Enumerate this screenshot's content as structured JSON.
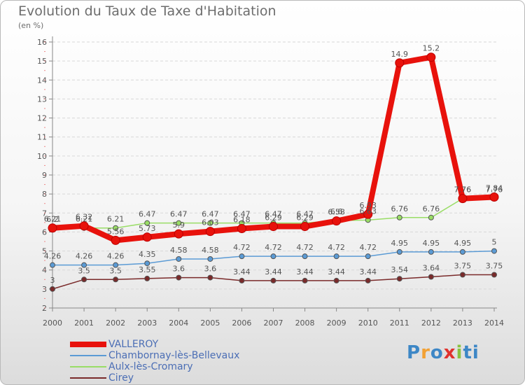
{
  "title": "Evolution du Taux de Taxe d'Habitation",
  "subtitle": "(en %)",
  "logo": {
    "text": "Proxiti",
    "colors": [
      "#3d87c6",
      "#f2a134",
      "#3d87c6",
      "#e0322d",
      "#88c23f",
      "#3d87c6",
      "#3d87c6"
    ]
  },
  "chart_data": {
    "type": "line",
    "x": [
      "2000",
      "2001",
      "2002",
      "2003",
      "2004",
      "2005",
      "2006",
      "2007",
      "2008",
      "2009",
      "2010",
      "2011",
      "2012",
      "2013",
      "2014"
    ],
    "ylim": [
      2,
      16
    ],
    "yticks": [
      "2",
      "3",
      "4",
      "5",
      "6",
      "7",
      "8",
      "9",
      "10",
      "11",
      "12",
      "13",
      "14",
      "15",
      "16"
    ],
    "grid": "horizontal dashed",
    "legend_position": "bottom-left",
    "series": [
      {
        "name": "VALLEROY",
        "color": "#e8120c",
        "values": [
          6.21,
          6.32,
          5.56,
          5.73,
          5.9,
          6.03,
          6.18,
          6.29,
          6.29,
          6.58,
          6.93,
          14.9,
          15.2,
          7.76,
          7.84
        ],
        "labels": [
          "6.21",
          "6.32",
          "5.56",
          "5.73",
          "5.9",
          "6.03",
          "6.18",
          "6.29",
          "6.29",
          "6.58",
          "6.93",
          "14.9",
          "15.2",
          "7.76",
          "7.84"
        ]
      },
      {
        "name": "Chambornay-lès-Bellevaux",
        "color": "#5b9bd5",
        "values": [
          4.26,
          4.26,
          4.26,
          4.35,
          4.58,
          4.58,
          4.72,
          4.72,
          4.72,
          4.72,
          4.72,
          4.95,
          4.95,
          4.95,
          5
        ],
        "labels": [
          "4.26",
          "4.26",
          "4.26",
          "4.35",
          "4.58",
          "4.58",
          "4.72",
          "4.72",
          "4.72",
          "4.72",
          "4.72",
          "4.95",
          "4.95",
          "4.95",
          "5"
        ]
      },
      {
        "name": "Aulx-lès-Cromary",
        "color": "#99dd66",
        "values": [
          6.2,
          6.21,
          6.21,
          6.47,
          6.47,
          6.47,
          6.47,
          6.47,
          6.47,
          6.6,
          6.63,
          6.76,
          6.76,
          7.76,
          7.76
        ],
        "labels": [
          "6.2",
          "6.21",
          "6.21",
          "6.47",
          "6.47",
          "6.47",
          "6.47",
          "6.47",
          "6.47",
          "6.6",
          "6.63",
          "6.76",
          "6.76",
          "7.76",
          "7.76"
        ]
      },
      {
        "name": "Cirey",
        "color": "#7a2a2a",
        "values": [
          3,
          3.5,
          3.5,
          3.55,
          3.6,
          3.6,
          3.44,
          3.44,
          3.44,
          3.44,
          3.44,
          3.54,
          3.64,
          3.75,
          3.75
        ],
        "labels": [
          "3",
          "3.5",
          "3.5",
          "3.55",
          "3.6",
          "3.6",
          "3.44",
          "3.44",
          "3.44",
          "3.44",
          "3.44",
          "3.54",
          "3.64",
          "3.75",
          "3.75"
        ]
      }
    ]
  }
}
